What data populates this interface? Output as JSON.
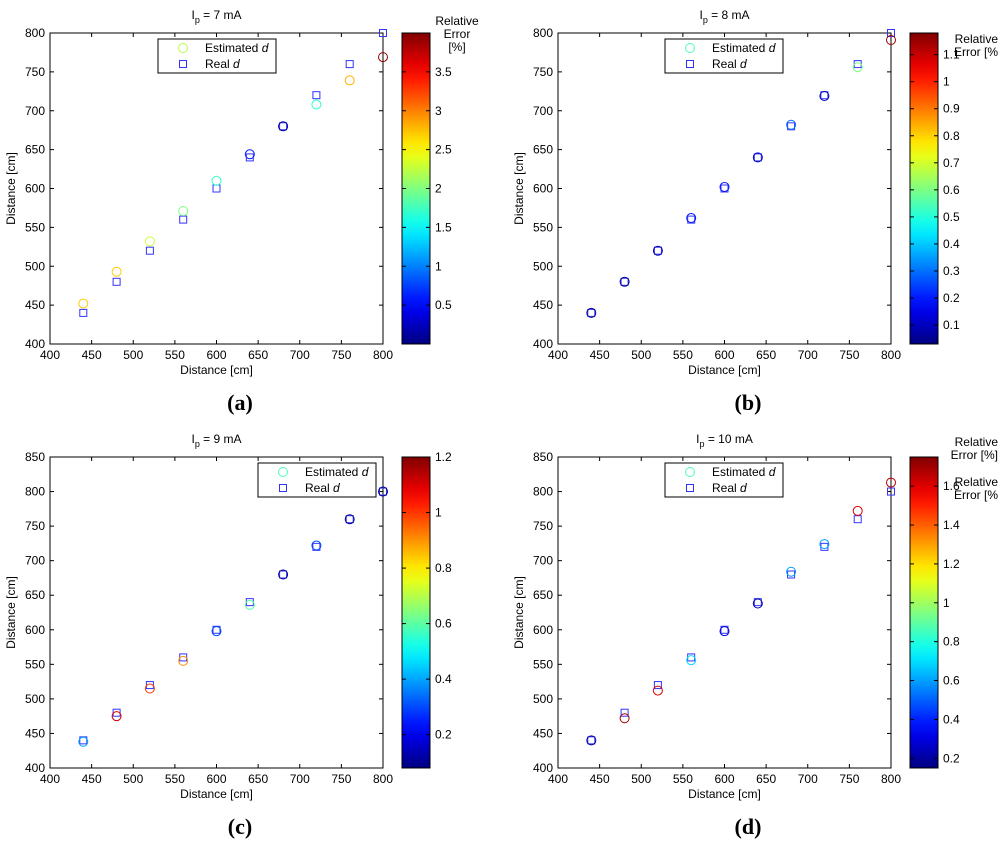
{
  "chart_data": [
    {
      "id": "a",
      "type": "scatter",
      "title_prefix": "I",
      "title_sub": "p",
      "title_suffix": " = 7 mA",
      "xlabel": "Distance [cm]",
      "ylabel": "Distance [cm]",
      "xlim": [
        400,
        800
      ],
      "ylim": [
        400,
        800
      ],
      "xticks": [
        400,
        450,
        500,
        550,
        600,
        650,
        700,
        750,
        800
      ],
      "yticks": [
        400,
        450,
        500,
        550,
        600,
        650,
        700,
        750,
        800
      ],
      "legend": {
        "estimated": "Estimated",
        "real": "Real",
        "var": "d",
        "placement": "top-left"
      },
      "colorbar": {
        "min": 0,
        "max": 4.0,
        "ticks": [
          0.5,
          1,
          1.5,
          2,
          2.5,
          3,
          3.5
        ],
        "label": [
          "Relative",
          "Error",
          "[%]"
        ]
      },
      "x": [
        440,
        480,
        520,
        560,
        600,
        640,
        680,
        720,
        760,
        800
      ],
      "real": [
        440,
        480,
        520,
        560,
        600,
        640,
        680,
        720,
        760,
        800
      ],
      "estimated": [
        452,
        493,
        532,
        571,
        610,
        644,
        680,
        708,
        739,
        769
      ],
      "error": [
        2.7,
        2.7,
        2.3,
        2.0,
        1.7,
        0.6,
        0.1,
        1.7,
        2.8,
        3.9
      ]
    },
    {
      "id": "b",
      "type": "scatter",
      "title_prefix": "I",
      "title_sub": "p",
      "title_suffix": " = 8 mA",
      "xlabel": "Distance [cm]",
      "ylabel": "Distance [cm]",
      "xlim": [
        400,
        800
      ],
      "ylim": [
        400,
        800
      ],
      "xticks": [
        400,
        450,
        500,
        550,
        600,
        650,
        700,
        750,
        800
      ],
      "yticks": [
        400,
        450,
        500,
        550,
        600,
        650,
        700,
        750,
        800
      ],
      "legend": {
        "estimated": "Estimated",
        "real": "Real",
        "var": "d",
        "placement": "top-left"
      },
      "colorbar": {
        "min": 0.03,
        "max": 1.18,
        "ticks": [
          0.1,
          0.2,
          0.3,
          0.4,
          0.5,
          0.6,
          0.7,
          0.8,
          0.9,
          1,
          1.1
        ],
        "label": [
          "Relative",
          "Error [%"
        ]
      },
      "x": [
        440,
        480,
        520,
        560,
        600,
        640,
        680,
        720,
        760,
        800
      ],
      "real": [
        440,
        480,
        520,
        560,
        600,
        640,
        680,
        720,
        760,
        800
      ],
      "estimated": [
        440,
        480,
        520,
        562,
        602,
        640,
        682,
        719,
        756,
        791
      ],
      "error": [
        0.05,
        0.05,
        0.1,
        0.2,
        0.2,
        0.1,
        0.3,
        0.1,
        0.6,
        1.15
      ]
    },
    {
      "id": "c",
      "type": "scatter",
      "title_prefix": "I",
      "title_sub": "p",
      "title_suffix": " = 9 mA",
      "xlabel": "Distance [cm]",
      "ylabel": "Distance [cm]",
      "xlim": [
        400,
        800
      ],
      "ylim": [
        400,
        850
      ],
      "xticks": [
        400,
        450,
        500,
        550,
        600,
        650,
        700,
        750,
        800
      ],
      "yticks": [
        400,
        450,
        500,
        550,
        600,
        650,
        700,
        750,
        800,
        850
      ],
      "legend": {
        "estimated": "Estimated",
        "real": "Real",
        "var": "d",
        "placement": "top-right"
      },
      "colorbar": {
        "min": 0.08,
        "max": 1.2,
        "ticks": [
          0.2,
          0.4,
          0.6,
          0.8,
          1,
          1.2
        ],
        "label": [
          "Relative",
          "Error [%"
        ]
      },
      "x": [
        440,
        480,
        520,
        560,
        600,
        640,
        680,
        720,
        760,
        800
      ],
      "real": [
        440,
        480,
        520,
        560,
        600,
        640,
        680,
        720,
        760,
        800
      ],
      "estimated": [
        438,
        475,
        515,
        555,
        598,
        636,
        680,
        722,
        760,
        800
      ],
      "error": [
        0.4,
        1.1,
        1.0,
        0.9,
        0.3,
        0.6,
        0.1,
        0.3,
        0.1,
        0.1
      ]
    },
    {
      "id": "d",
      "type": "scatter",
      "title_prefix": "I",
      "title_sub": "p",
      "title_suffix": " = 10 mA",
      "xlabel": "Distance [cm]",
      "ylabel": "Distance [cm]",
      "xlim": [
        400,
        800
      ],
      "ylim": [
        400,
        850
      ],
      "xticks": [
        400,
        450,
        500,
        550,
        600,
        650,
        700,
        750,
        800
      ],
      "yticks": [
        400,
        450,
        500,
        550,
        600,
        650,
        700,
        750,
        800,
        850
      ],
      "legend": {
        "estimated": "Estimated",
        "real": "Real",
        "var": "d",
        "placement": "top-left"
      },
      "colorbar": {
        "min": 0.15,
        "max": 1.75,
        "ticks": [
          0.2,
          0.4,
          0.6,
          0.8,
          1,
          1.2,
          1.4,
          1.6
        ],
        "label": [
          "Relative",
          "Error [%]"
        ]
      },
      "x": [
        440,
        480,
        520,
        560,
        600,
        640,
        680,
        720,
        760,
        800
      ],
      "real": [
        440,
        480,
        520,
        560,
        600,
        640,
        680,
        720,
        760,
        800
      ],
      "estimated": [
        440,
        472,
        512,
        556,
        598,
        638,
        684,
        724,
        772,
        813
      ],
      "error": [
        0.2,
        1.7,
        1.6,
        0.7,
        0.3,
        0.2,
        0.6,
        0.6,
        1.6,
        1.65
      ]
    }
  ],
  "panel_labels": [
    "(a)",
    "(b)",
    "(c)",
    "(d)"
  ],
  "colors": {
    "marker_real": "#3333ff",
    "axis": "#000000"
  }
}
